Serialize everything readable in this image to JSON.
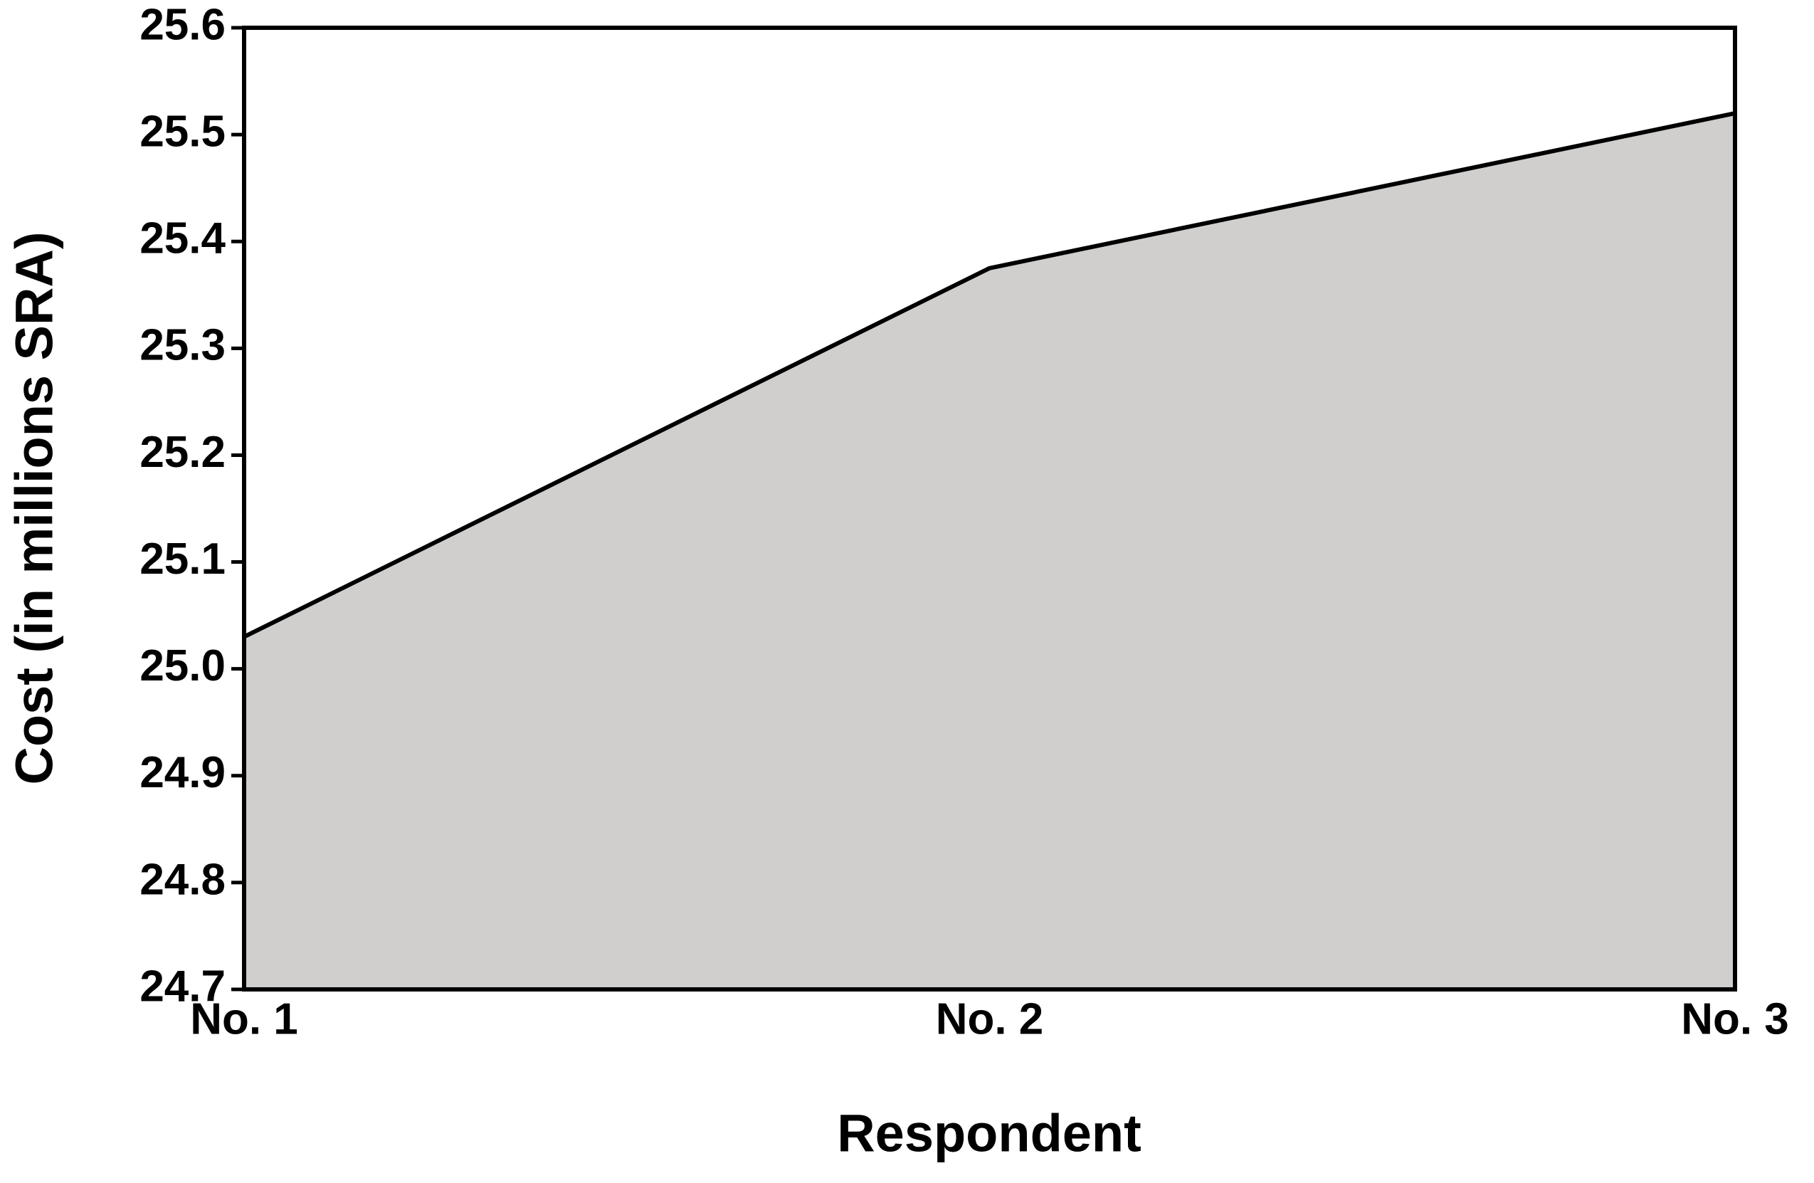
{
  "chart_data": {
    "type": "area",
    "categories": [
      "No. 1",
      "No. 2",
      "No. 3"
    ],
    "values": [
      25.03,
      25.375,
      25.52
    ],
    "color": "#d0cfcd",
    "line_color": "#000000",
    "xlabel": "Respondent",
    "ylabel": "Cost (in millions SRA)",
    "ylim": [
      24.7,
      25.6
    ],
    "yticks": [
      24.7,
      24.8,
      24.9,
      {
        "value": 25,
        "label": "25.0"
      },
      25.1,
      25.2,
      25.3,
      25.4,
      25.5,
      25.6
    ],
    "grid": false
  }
}
